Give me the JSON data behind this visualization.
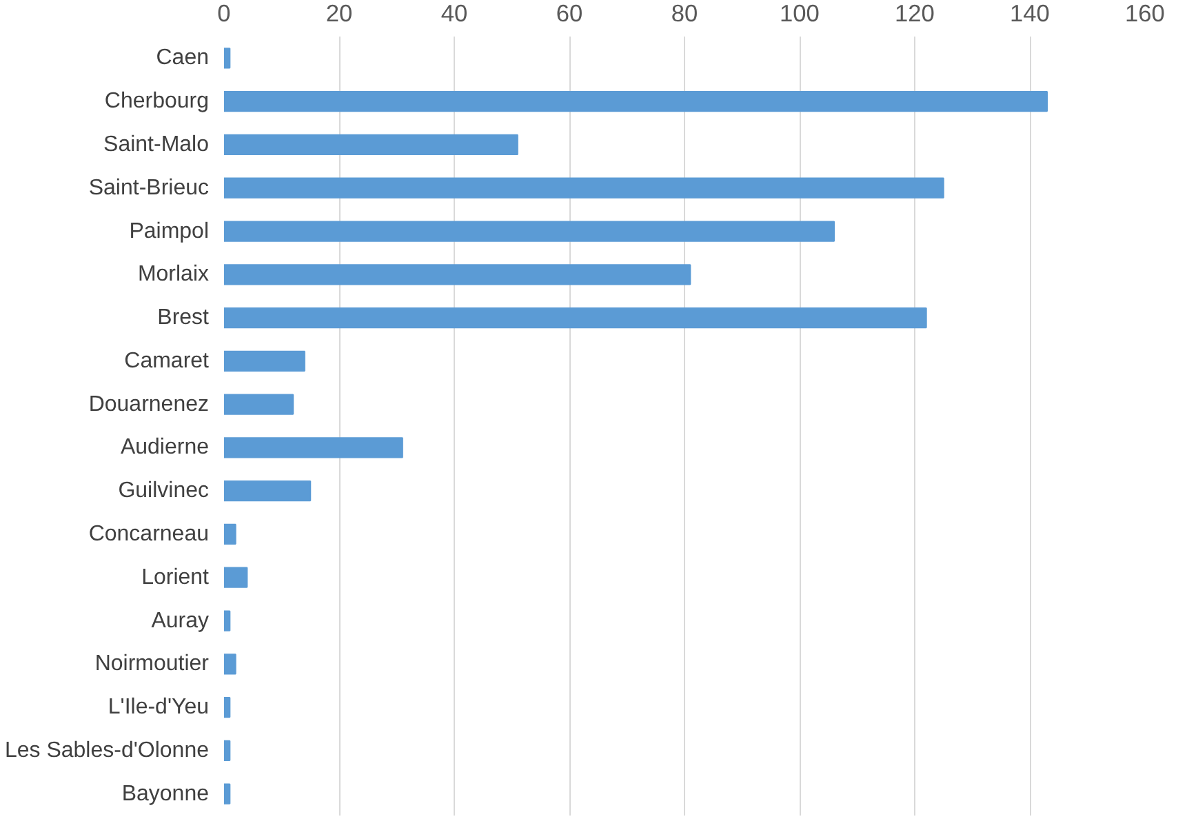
{
  "chart_data": {
    "type": "bar",
    "orientation": "horizontal",
    "categories": [
      "Caen",
      "Cherbourg",
      "Saint-Malo",
      "Saint-Brieuc",
      "Paimpol",
      "Morlaix",
      "Brest",
      "Camaret",
      "Douarnenez",
      "Audierne",
      "Guilvinec",
      "Concarneau",
      "Lorient",
      "Auray",
      "Noirmoutier",
      "L'Ile-d'Yeu",
      "Les Sables-d'Olonne",
      "Bayonne"
    ],
    "values": [
      1,
      143,
      51,
      125,
      106,
      81,
      122,
      14,
      12,
      31,
      15,
      2,
      4,
      1,
      2,
      1,
      1,
      1
    ],
    "color": "#5b9bd5",
    "xlim": [
      0,
      160
    ],
    "xticks": [
      0,
      20,
      40,
      60,
      80,
      100,
      120,
      140,
      160
    ],
    "grid": "x"
  }
}
